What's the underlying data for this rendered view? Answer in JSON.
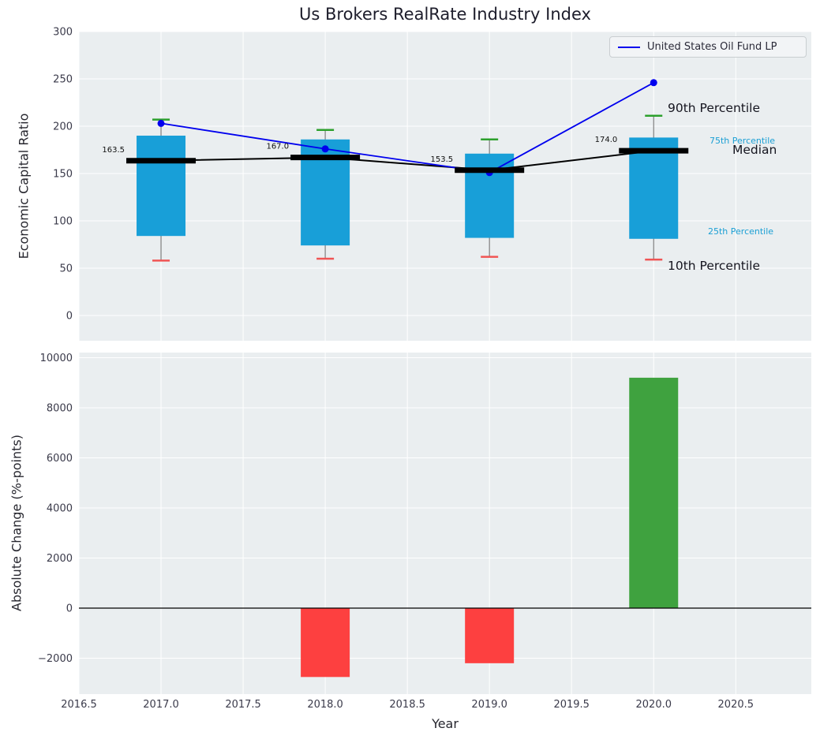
{
  "title": "Us Brokers RealRate Industry Index",
  "axes": {
    "top_ylabel": "Economic Capital Ratio",
    "bottom_ylabel": "Absolute Change (%-points)",
    "xlabel": "Year"
  },
  "legend": {
    "label": "United States Oil Fund LP"
  },
  "annotations": {
    "p90": "90th Percentile",
    "p75": "75th Percentile",
    "median": "Median",
    "p25": "25th Percentile",
    "p10": "10th Percentile"
  },
  "colors": {
    "panel_bg": "#eaeef0",
    "grid": "#ffffff",
    "box_fill": "#189fd8",
    "fund_line": "#0000ee",
    "median_line": "#000000",
    "cap_high": "#2ca02c",
    "cap_low": "#f05454",
    "whisker": "#7f7f7f",
    "bar_negative": "#fd4040",
    "bar_positive": "#3fa23f",
    "tick_text": "#3a3a4a",
    "percentile_text": "#1a9fd4",
    "zero_line": "#000000"
  },
  "chart_data": [
    {
      "type": "boxplot-with-line",
      "title": "Us Brokers RealRate Industry Index",
      "ylabel": "Economic Capital Ratio",
      "ylim": [
        -26.7,
        300
      ],
      "xlim": [
        2016.5,
        2020.96
      ],
      "grid": true,
      "legend_position": "upper right",
      "yticks": [
        0,
        50,
        100,
        150,
        200,
        250,
        300
      ],
      "ytick_labels": [
        "0",
        "50",
        "100",
        "150",
        "200",
        "250",
        "300"
      ],
      "x": [
        2017,
        2018,
        2019,
        2020
      ],
      "boxes": [
        {
          "p10": 58,
          "p25": 84,
          "median": 163.5,
          "p75": 190,
          "p90": 207
        },
        {
          "p10": 60,
          "p25": 74,
          "median": 167.0,
          "p75": 186,
          "p90": 196
        },
        {
          "p10": 62,
          "p25": 82,
          "median": 153.5,
          "p75": 171,
          "p90": 186
        },
        {
          "p10": 59,
          "p25": 81,
          "median": 174.0,
          "p75": 188,
          "p90": 211
        }
      ],
      "median_labels": [
        "163.5",
        "167.0",
        "153.5",
        "174.0"
      ],
      "series": [
        {
          "name": "United States Oil Fund LP",
          "values": [
            203,
            176,
            151,
            246
          ]
        },
        {
          "name": "Median",
          "values": [
            163.5,
            167.0,
            153.5,
            174.0
          ]
        }
      ]
    },
    {
      "type": "bar",
      "ylabel": "Absolute Change (%-points)",
      "xlabel": "Year",
      "ylim": [
        -3433,
        10204
      ],
      "xlim": [
        2016.5,
        2020.96
      ],
      "grid": true,
      "yticks": [
        -2000,
        0,
        2000,
        4000,
        6000,
        8000,
        10000
      ],
      "ytick_labels": [
        "−2000",
        "0",
        "2000",
        "4000",
        "6000",
        "8000",
        "10000"
      ],
      "xticks": [
        2016.5,
        2017.0,
        2017.5,
        2018.0,
        2018.5,
        2019.0,
        2019.5,
        2020.0,
        2020.5
      ],
      "xtick_labels": [
        "2016.5",
        "2017.0",
        "2017.5",
        "2018.0",
        "2018.5",
        "2019.0",
        "2019.5",
        "2020.0",
        "2020.5"
      ],
      "x": [
        2018,
        2019,
        2020
      ],
      "values": [
        -2750,
        -2200,
        9200
      ],
      "bar_signs": [
        "negative",
        "negative",
        "positive"
      ]
    }
  ]
}
